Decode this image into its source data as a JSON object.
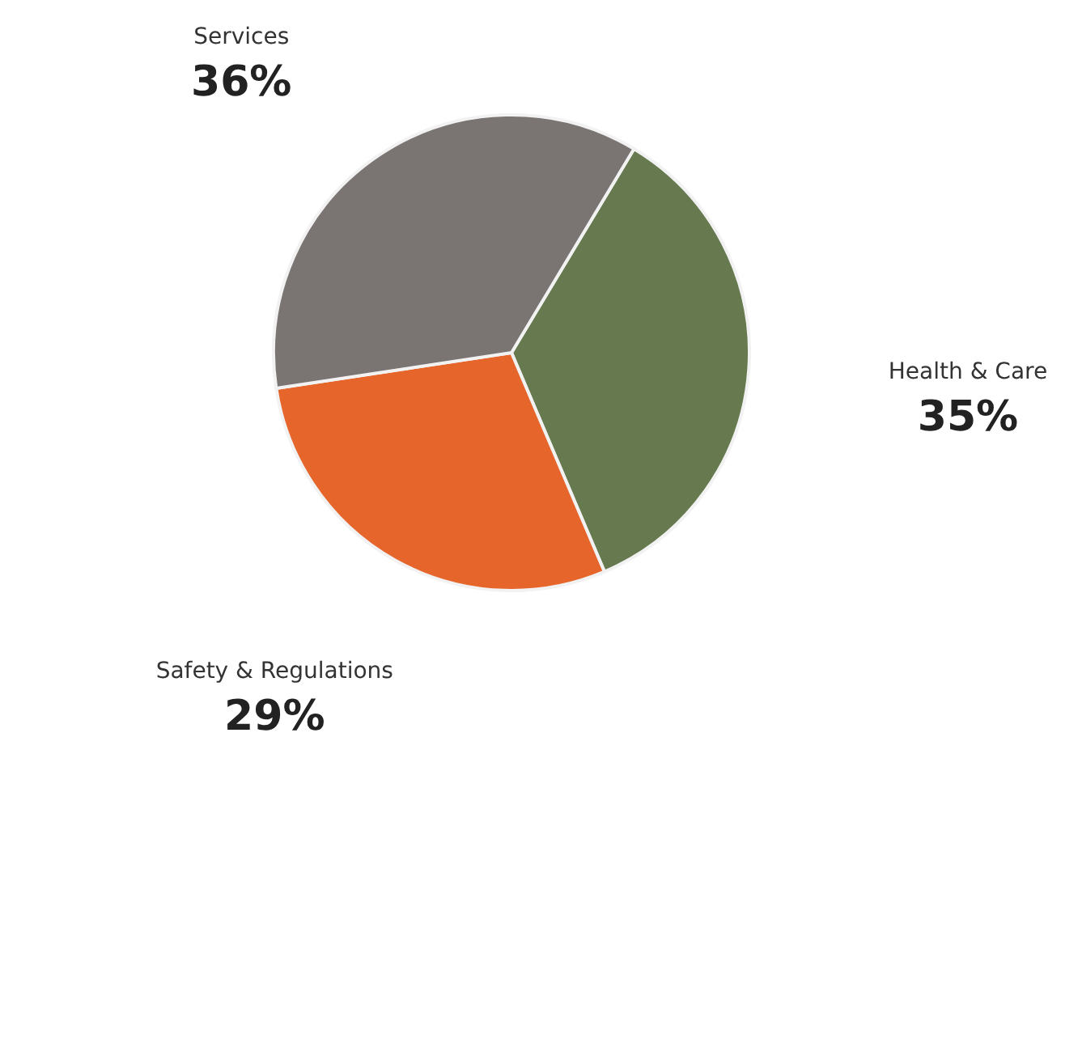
{
  "chart_data": {
    "type": "pie",
    "categories": [
      "Health & Care",
      "Safety & Regulations",
      "Services"
    ],
    "values": [
      35,
      29,
      36
    ],
    "colors": [
      "#66794f",
      "#e5652b",
      "#7a7472"
    ],
    "value_labels": [
      "35%",
      "29%",
      "36%"
    ]
  }
}
